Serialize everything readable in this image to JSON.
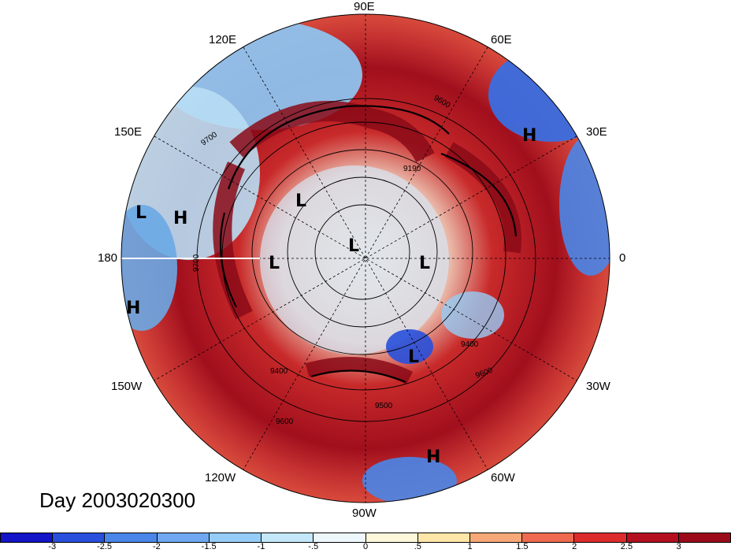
{
  "map": {
    "day_label": "Day 2003020300",
    "longitude_labels": [
      "90E",
      "120E",
      "60E",
      "150E",
      "30E",
      "180",
      "0",
      "150W",
      "30W",
      "120W",
      "60W",
      "90W"
    ],
    "pressure_centers": [
      "H",
      "L",
      "H",
      "L",
      "L",
      "L",
      "L",
      "H",
      "L",
      "H"
    ],
    "contour_labels": [
      "9600",
      "9700",
      "9190",
      "9700",
      "9400",
      "9600",
      "9400",
      "9600",
      "9500"
    ]
  },
  "colorbar": {
    "tick_labels": [
      "-3",
      "-2.5",
      "-2",
      "-1.5",
      "-1",
      "-.5",
      "0",
      ".5",
      "1",
      "1.5",
      "2",
      "2.5",
      "3"
    ],
    "colors": [
      "#1414c8",
      "#2850dc",
      "#4a86e8",
      "#6fa8f0",
      "#96cdf8",
      "#c4e8fa",
      "#eef8fc",
      "#fdf8dc",
      "#fde6a8",
      "#f6a878",
      "#ee6a50",
      "#dd2c2c",
      "#b41020",
      "#9b0a1a"
    ]
  }
}
